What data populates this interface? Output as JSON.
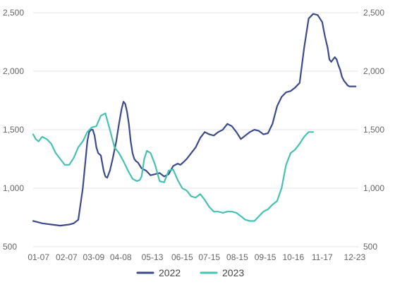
{
  "chart_data": {
    "type": "line",
    "title": "",
    "xlabel": "",
    "ylabel": "",
    "ylim": [
      500,
      2500
    ],
    "yticks": [
      500,
      1000,
      1500,
      2000,
      2500
    ],
    "ytick_labels": [
      "500",
      "1,000",
      "1,500",
      "2,000",
      "2,500"
    ],
    "x_domain_days": [
      0,
      360
    ],
    "xtick_labels": [
      "01-07",
      "02-07",
      "03-09",
      "04-08",
      "05-13",
      "06-15",
      "07-15",
      "08-15",
      "09-15",
      "10-16",
      "11-17",
      "12-23"
    ],
    "xtick_days": [
      6,
      37,
      67,
      97,
      132,
      165,
      195,
      226,
      257,
      288,
      320,
      356
    ],
    "grid": true,
    "legend_position": "bottom",
    "series": [
      {
        "name": "2022",
        "color": "#3d4a8c",
        "x": [
          0,
          5,
          10,
          20,
          30,
          40,
          45,
          50,
          55,
          60,
          62,
          64,
          66,
          68,
          70,
          72,
          75,
          78,
          80,
          82,
          85,
          88,
          92,
          95,
          98,
          100,
          102,
          104,
          106,
          108,
          110,
          112,
          114,
          116,
          120,
          125,
          130,
          135,
          140,
          145,
          150,
          155,
          160,
          163,
          166,
          170,
          175,
          180,
          185,
          190,
          195,
          200,
          205,
          210,
          215,
          220,
          225,
          230,
          235,
          240,
          245,
          250,
          255,
          260,
          265,
          270,
          275,
          280,
          285,
          290,
          295,
          300,
          305,
          310,
          315,
          320,
          323,
          326,
          328,
          330,
          332,
          334,
          336,
          338,
          340,
          342,
          344,
          346,
          348,
          350,
          352,
          354,
          356,
          357
        ],
        "values": [
          720,
          710,
          700,
          690,
          680,
          690,
          700,
          730,
          1000,
          1400,
          1480,
          1500,
          1500,
          1450,
          1350,
          1300,
          1280,
          1150,
          1100,
          1090,
          1150,
          1250,
          1400,
          1550,
          1680,
          1740,
          1720,
          1650,
          1550,
          1400,
          1300,
          1250,
          1230,
          1220,
          1170,
          1150,
          1110,
          1120,
          1130,
          1100,
          1120,
          1190,
          1210,
          1200,
          1220,
          1250,
          1300,
          1350,
          1430,
          1480,
          1460,
          1450,
          1480,
          1500,
          1550,
          1530,
          1480,
          1420,
          1450,
          1480,
          1500,
          1490,
          1460,
          1470,
          1550,
          1700,
          1780,
          1820,
          1830,
          1860,
          1900,
          2200,
          2450,
          2490,
          2480,
          2420,
          2300,
          2200,
          2100,
          2080,
          2100,
          2120,
          2100,
          2050,
          2010,
          1950,
          1920,
          1900,
          1880,
          1870,
          1870,
          1870,
          1870,
          1870
        ]
      },
      {
        "name": "2023",
        "color": "#45c2b1",
        "x": [
          0,
          3,
          6,
          10,
          15,
          20,
          25,
          30,
          35,
          40,
          45,
          50,
          55,
          60,
          65,
          70,
          75,
          80,
          85,
          90,
          95,
          100,
          105,
          110,
          115,
          118,
          120,
          123,
          126,
          130,
          135,
          140,
          145,
          150,
          155,
          160,
          165,
          170,
          175,
          180,
          185,
          190,
          195,
          200,
          205,
          210,
          215,
          220,
          225,
          230,
          235,
          240,
          245,
          250,
          255,
          260,
          265,
          270,
          275,
          280,
          285,
          290,
          295,
          300,
          305,
          310
        ],
        "values": [
          1460,
          1420,
          1400,
          1440,
          1420,
          1380,
          1300,
          1250,
          1200,
          1200,
          1260,
          1350,
          1400,
          1480,
          1520,
          1530,
          1620,
          1640,
          1500,
          1350,
          1300,
          1230,
          1150,
          1080,
          1060,
          1070,
          1100,
          1250,
          1320,
          1300,
          1200,
          1060,
          1050,
          1150,
          1160,
          1070,
          1000,
          980,
          930,
          920,
          950,
          900,
          840,
          800,
          800,
          790,
          800,
          800,
          790,
          760,
          730,
          720,
          720,
          760,
          800,
          820,
          860,
          890,
          1000,
          1200,
          1300,
          1330,
          1380,
          1440,
          1480,
          1480
        ]
      }
    ]
  }
}
